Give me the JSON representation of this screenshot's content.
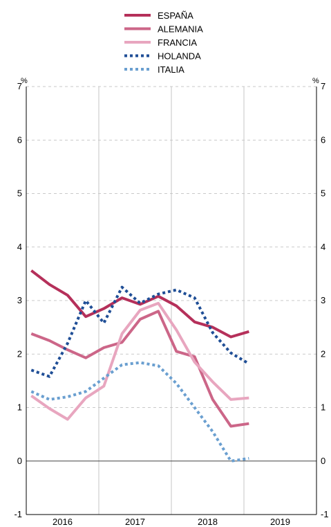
{
  "chart_data": {
    "type": "line",
    "y_unit": "%",
    "ylim": [
      -1,
      7
    ],
    "yticks": [
      "-1",
      "0",
      "1",
      "2",
      "3",
      "4",
      "5",
      "6",
      "7"
    ],
    "xlim": [
      2015.93,
      2019.93
    ],
    "year_labels": [
      "2016",
      "2017",
      "2018",
      "2019"
    ],
    "legend_position": "top-center",
    "grid": "horizontal dashed, vertical solid at year boundaries",
    "series": [
      {
        "name": "ESPAÑA",
        "color": "#b5305a",
        "style": "solid",
        "points": [
          [
            2016.0,
            3.56
          ],
          [
            2016.25,
            3.3
          ],
          [
            2016.5,
            3.1
          ],
          [
            2016.75,
            2.7
          ],
          [
            2017.0,
            2.85
          ],
          [
            2017.25,
            3.05
          ],
          [
            2017.5,
            2.93
          ],
          [
            2017.75,
            3.08
          ],
          [
            2018.0,
            2.9
          ],
          [
            2018.25,
            2.6
          ],
          [
            2018.5,
            2.5
          ],
          [
            2018.75,
            2.32
          ],
          [
            2019.0,
            2.42
          ]
        ]
      },
      {
        "name": "ALEMANIA",
        "color": "#cc6688",
        "style": "solid",
        "points": [
          [
            2016.0,
            2.38
          ],
          [
            2016.25,
            2.25
          ],
          [
            2016.5,
            2.08
          ],
          [
            2016.75,
            1.93
          ],
          [
            2017.0,
            2.12
          ],
          [
            2017.25,
            2.22
          ],
          [
            2017.5,
            2.65
          ],
          [
            2017.75,
            2.8
          ],
          [
            2018.0,
            2.05
          ],
          [
            2018.25,
            1.95
          ],
          [
            2018.5,
            1.15
          ],
          [
            2018.75,
            0.65
          ],
          [
            2019.0,
            0.7
          ]
        ]
      },
      {
        "name": "FRANCIA",
        "color": "#e8a6bf",
        "style": "solid",
        "points": [
          [
            2016.0,
            1.22
          ],
          [
            2016.25,
            0.98
          ],
          [
            2016.5,
            0.78
          ],
          [
            2016.75,
            1.18
          ],
          [
            2017.0,
            1.4
          ],
          [
            2017.25,
            2.38
          ],
          [
            2017.5,
            2.82
          ],
          [
            2017.75,
            2.95
          ],
          [
            2018.0,
            2.45
          ],
          [
            2018.25,
            1.85
          ],
          [
            2018.5,
            1.48
          ],
          [
            2018.75,
            1.15
          ],
          [
            2019.0,
            1.18
          ]
        ]
      },
      {
        "name": "HOLANDA",
        "color": "#1f4e96",
        "style": "dotted",
        "points": [
          [
            2016.0,
            1.7
          ],
          [
            2016.25,
            1.58
          ],
          [
            2016.5,
            2.2
          ],
          [
            2016.75,
            3.0
          ],
          [
            2017.0,
            2.58
          ],
          [
            2017.25,
            3.25
          ],
          [
            2017.5,
            2.95
          ],
          [
            2017.75,
            3.12
          ],
          [
            2018.0,
            3.2
          ],
          [
            2018.25,
            3.05
          ],
          [
            2018.5,
            2.4
          ],
          [
            2018.75,
            2.02
          ],
          [
            2019.0,
            1.82
          ]
        ]
      },
      {
        "name": "ITALIA",
        "color": "#6a9fd0",
        "style": "dotted",
        "points": [
          [
            2016.0,
            1.3
          ],
          [
            2016.25,
            1.15
          ],
          [
            2016.5,
            1.2
          ],
          [
            2016.75,
            1.3
          ],
          [
            2017.0,
            1.55
          ],
          [
            2017.25,
            1.8
          ],
          [
            2017.5,
            1.84
          ],
          [
            2017.75,
            1.78
          ],
          [
            2018.0,
            1.45
          ],
          [
            2018.25,
            1.0
          ],
          [
            2018.5,
            0.55
          ],
          [
            2018.75,
            0.0
          ],
          [
            2019.0,
            0.05
          ]
        ]
      }
    ]
  }
}
